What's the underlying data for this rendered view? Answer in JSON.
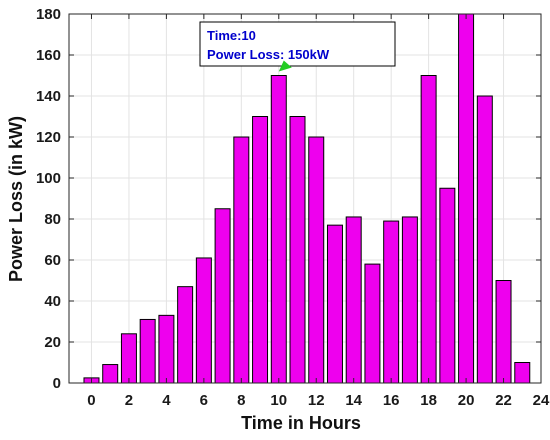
{
  "chart_data": {
    "type": "bar",
    "xlabel": "Time in Hours",
    "ylabel": "Power Loss (in kW)",
    "x": [
      0,
      1,
      2,
      3,
      4,
      5,
      6,
      7,
      8,
      9,
      10,
      11,
      12,
      13,
      14,
      15,
      16,
      17,
      18,
      19,
      20,
      21,
      22,
      23
    ],
    "values": [
      2.5,
      9,
      24,
      31,
      33,
      47,
      61,
      85,
      120,
      130,
      150,
      130,
      120,
      77,
      81,
      58,
      79,
      81,
      150,
      95,
      180,
      140,
      50,
      10
    ],
    "xlim": [
      -1.2,
      24
    ],
    "ylim": [
      0,
      180
    ],
    "xticks": [
      0,
      2,
      4,
      6,
      8,
      10,
      12,
      14,
      16,
      18,
      20,
      22,
      24
    ],
    "yticks": [
      0,
      20,
      40,
      60,
      80,
      100,
      120,
      140,
      160,
      180
    ],
    "grid": true,
    "bar_color": "#ee00ee",
    "bar_edge_color": "#000000",
    "datatip": {
      "line1": "Time:10",
      "line2": "Power Loss: 150kW",
      "text_color": "#0000cc",
      "marker_color": "#22cc22"
    }
  }
}
